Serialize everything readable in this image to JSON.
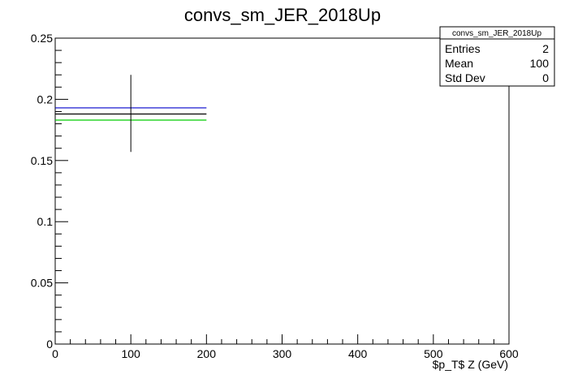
{
  "chart_data": {
    "type": "line",
    "title": "convs_sm_JER_2018Up",
    "xlabel": "$p_T$ Z (GeV)",
    "ylabel": "",
    "xlim": [
      0,
      600
    ],
    "ylim": [
      0,
      0.25
    ],
    "x_ticks": [
      "0",
      "100",
      "200",
      "300",
      "400",
      "500",
      "600"
    ],
    "y_ticks": [
      "0",
      "0.05",
      "0.1",
      "0.15",
      "0.2",
      "0.25"
    ],
    "series": [
      {
        "color": "#0000cc",
        "x_range": [
          0,
          200
        ],
        "y": 0.193
      },
      {
        "color": "#000000",
        "x_range": [
          0,
          200
        ],
        "y": 0.188
      },
      {
        "color": "#00cc00",
        "x_range": [
          0,
          200
        ],
        "y": 0.183
      }
    ],
    "error_bar": {
      "x": 100,
      "y_low": 0.157,
      "y_high": 0.22,
      "color": "#000000"
    },
    "stats_box": {
      "title": "convs_sm_JER_2018Up",
      "rows": [
        {
          "label": "Entries",
          "value": "2"
        },
        {
          "label": "Mean",
          "value": "100"
        },
        {
          "label": "Std Dev",
          "value": "0"
        }
      ]
    }
  }
}
